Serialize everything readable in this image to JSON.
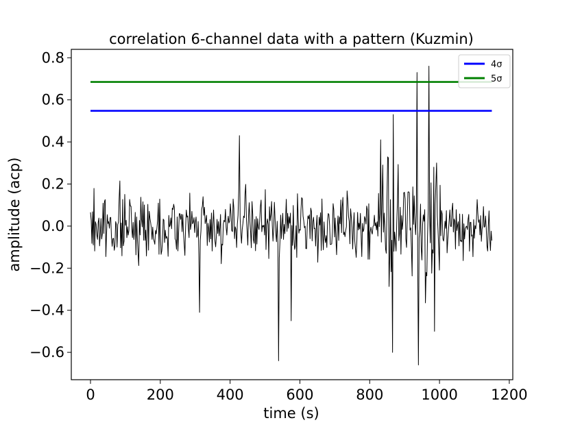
{
  "chart_data": {
    "type": "line",
    "title": "correlation 6-channel data with a pattern (Kuzmin)",
    "xlabel": "time (s)",
    "ylabel": "amplitude (acp)",
    "xlim": [
      -55,
      1210
    ],
    "ylim": [
      -0.73,
      0.84
    ],
    "xticks": [
      0,
      200,
      400,
      600,
      800,
      1000,
      1200
    ],
    "yticks": [
      -0.6,
      -0.4,
      -0.2,
      0.0,
      0.2,
      0.4,
      0.6,
      0.8
    ],
    "xtick_labels": [
      "0",
      "200",
      "400",
      "600",
      "800",
      "1000",
      "1200"
    ],
    "ytick_labels": [
      "−0.6",
      "−0.4",
      "−0.2",
      "0.0",
      "0.2",
      "0.4",
      "0.6",
      "0.8"
    ],
    "grid": false,
    "legend_position": "top-right",
    "threshold_lines": [
      {
        "name": "4σ",
        "y": 0.548,
        "x_range": [
          0,
          1150
        ],
        "color": "#0000ff"
      },
      {
        "name": "5σ",
        "y": 0.685,
        "x_range": [
          0,
          1150
        ],
        "color": "#008000"
      }
    ],
    "signal": {
      "color": "#000000",
      "x_range": [
        0,
        1150
      ],
      "points": 575,
      "notable_peaks": [
        {
          "x": 935,
          "y": 0.73
        },
        {
          "x": 970,
          "y": 0.76
        },
        {
          "x": 867,
          "y": 0.53
        },
        {
          "x": 832,
          "y": 0.41
        },
        {
          "x": 427,
          "y": 0.43
        }
      ],
      "notable_troughs": [
        {
          "x": 538,
          "y": -0.64
        },
        {
          "x": 940,
          "y": -0.66
        },
        {
          "x": 865,
          "y": -0.6
        },
        {
          "x": 985,
          "y": -0.5
        },
        {
          "x": 575,
          "y": -0.45
        },
        {
          "x": 313,
          "y": -0.41
        }
      ],
      "baseline_std": 0.11
    }
  }
}
